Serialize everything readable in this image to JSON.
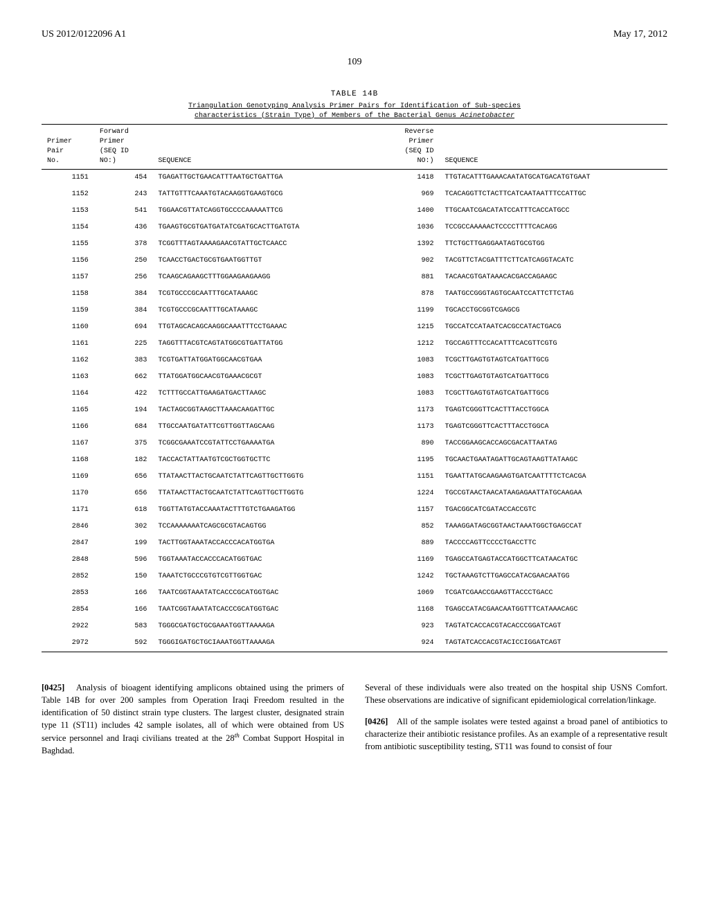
{
  "header": {
    "pub_number": "US 2012/0122096 A1",
    "pub_date": "May 17, 2012"
  },
  "page_number": "109",
  "table": {
    "label": "TABLE 14B",
    "caption_line1": "Triangulation Genotyping Analysis Primer Pairs for Identification of Sub-species",
    "caption_line2_a": "characteristics (Strain Type) of Members of the Bacterial Genus ",
    "caption_line2_b": "Acinetobacter",
    "headers": {
      "pair_no": "Primer\nPair\nNo.",
      "fwd_seqid": "Forward\nPrimer\n(SEQ ID\nNO:)",
      "fwd_seq": "SEQUENCE",
      "rev_seqid": "Reverse\nPrimer\n(SEQ ID\nNO:)",
      "rev_seq": "SEQUENCE"
    },
    "rows": [
      {
        "pair_no": "1151",
        "fwd_id": "454",
        "fwd_seq": "TGAGATTGCTGAACATTTAATGCTGATTGA",
        "rev_id": "1418",
        "rev_seq": "TTGTACATTTGAAACAATATGCATGACATGTGAAT"
      },
      {
        "pair_no": "1152",
        "fwd_id": "243",
        "fwd_seq": "TATTGTTTCAAATGTACAAGGTGAAGTGCG",
        "rev_id": "969",
        "rev_seq": "TCACAGGTTCTACTTCATCAATAATTTCCATTGC"
      },
      {
        "pair_no": "1153",
        "fwd_id": "541",
        "fwd_seq": "TGGAACGTTATCAGGTGCCCCAAAAATTCG",
        "rev_id": "1400",
        "rev_seq": "TTGCAATCGACATATCCATTTCACCATGCC"
      },
      {
        "pair_no": "1154",
        "fwd_id": "436",
        "fwd_seq": "TGAAGTGCGTGATGATATCGATGCACTTGATGTA",
        "rev_id": "1036",
        "rev_seq": "TCCGCCAAAAACTCCCCTTTTCACAGG"
      },
      {
        "pair_no": "1155",
        "fwd_id": "378",
        "fwd_seq": "TCGGTTTAGTAAAAGAACGTATTGCTCAACC",
        "rev_id": "1392",
        "rev_seq": "TTCTGCTTGAGGAATAGTGCGTGG"
      },
      {
        "pair_no": "1156",
        "fwd_id": "250",
        "fwd_seq": "TCAACCTGACTGCGTGAATGGTTGT",
        "rev_id": "902",
        "rev_seq": "TACGTTCTACGATTTCTTCATCAGGTACATC"
      },
      {
        "pair_no": "1157",
        "fwd_id": "256",
        "fwd_seq": "TCAAGCAGAAGCTTTGGAAGAAGAAGG",
        "rev_id": "881",
        "rev_seq": "TACAACGTGATAAACACGACCAGAAGC"
      },
      {
        "pair_no": "1158",
        "fwd_id": "384",
        "fwd_seq": "TCGTGCCCGCAATTTGCATAAAGC",
        "rev_id": "878",
        "rev_seq": "TAATGCCGGGTAGTGCAATCCATTCTTCTAG"
      },
      {
        "pair_no": "1159",
        "fwd_id": "384",
        "fwd_seq": "TCGTGCCCGCAATTTGCATAAAGC",
        "rev_id": "1199",
        "rev_seq": "TGCACCTGCGGTCGAGCG"
      },
      {
        "pair_no": "1160",
        "fwd_id": "694",
        "fwd_seq": "TTGTAGCACAGCAAGGCAAATTTCCTGAAAC",
        "rev_id": "1215",
        "rev_seq": "TGCCATCCATAATCACGCCATACTGACG"
      },
      {
        "pair_no": "1161",
        "fwd_id": "225",
        "fwd_seq": "TAGGTTTACGTCAGTATGGCGTGATTATGG",
        "rev_id": "1212",
        "rev_seq": "TGCCAGTTTCCACATTTCACGTTCGTG"
      },
      {
        "pair_no": "1162",
        "fwd_id": "383",
        "fwd_seq": "TCGTGATTATGGATGGCAACGTGAA",
        "rev_id": "1083",
        "rev_seq": "TCGCTTGAGTGTAGTCATGATTGCG"
      },
      {
        "pair_no": "1163",
        "fwd_id": "662",
        "fwd_seq": "TTATGGATGGCAACGTGAAACGCGT",
        "rev_id": "1083",
        "rev_seq": "TCGCTTGAGTGTAGTCATGATTGCG"
      },
      {
        "pair_no": "1164",
        "fwd_id": "422",
        "fwd_seq": "TCTTTGCCATTGAAGATGACTTAAGC",
        "rev_id": "1083",
        "rev_seq": "TCGCTTGAGTGTAGTCATGATTGCG"
      },
      {
        "pair_no": "1165",
        "fwd_id": "194",
        "fwd_seq": "TACTAGCGGTAAGCTTAAACAAGATTGC",
        "rev_id": "1173",
        "rev_seq": "TGAGTCGGGTTCACTTTACCTGGCA"
      },
      {
        "pair_no": "1166",
        "fwd_id": "684",
        "fwd_seq": "TTGCCAATGATATTCGTTGGTTAGCAAG",
        "rev_id": "1173",
        "rev_seq": "TGAGTCGGGTTCACTTTACCTGGCA"
      },
      {
        "pair_no": "1167",
        "fwd_id": "375",
        "fwd_seq": "TCGGCGAAATCCGTATTCCTGAAAATGA",
        "rev_id": "890",
        "rev_seq": "TACCGGAAGCACCAGCGACATTAATAG"
      },
      {
        "pair_no": "1168",
        "fwd_id": "182",
        "fwd_seq": "TACCACTATTAATGTCGCTGGTGCTTC",
        "rev_id": "1195",
        "rev_seq": "TGCAACTGAATAGATTGCAGTAAGTTATAAGC"
      },
      {
        "pair_no": "1169",
        "fwd_id": "656",
        "fwd_seq": "TTATAACTTACTGCAATCTATTCAGTTGCTTGGTG",
        "rev_id": "1151",
        "rev_seq": "TGAATTATGCAAGAAGTGATCAATTTTCTCACGA"
      },
      {
        "pair_no": "1170",
        "fwd_id": "656",
        "fwd_seq": "TTATAACTTACTGCAATCTATTCAGTTGCTTGGTG",
        "rev_id": "1224",
        "rev_seq": "TGCCGTAACTAACATAAGAGAATTATGCAAGAA"
      },
      {
        "pair_no": "1171",
        "fwd_id": "618",
        "fwd_seq": "TGGTTATGTACCAAATACTTTGTCTGAAGATGG",
        "rev_id": "1157",
        "rev_seq": "TGACGGCATCGATACCACCGTC"
      },
      {
        "pair_no": "2846",
        "fwd_id": "302",
        "fwd_seq": "TCCAAAAAAATCAGCGCGTACAGTGG",
        "rev_id": "852",
        "rev_seq": "TAAAGGATAGCGGTAACTAAATGGCTGAGCCAT"
      },
      {
        "pair_no": "2847",
        "fwd_id": "199",
        "fwd_seq": "TACTTGGTAAATACCACCCACATGGTGA",
        "rev_id": "889",
        "rev_seq": "TACCCCAGTTCCCCTGACCTTC"
      },
      {
        "pair_no": "2848",
        "fwd_id": "596",
        "fwd_seq": "TGGTAAATACCACCCACATGGTGAC",
        "rev_id": "1169",
        "rev_seq": "TGAGCCATGAGTACCATGGCTTCATAACATGC"
      },
      {
        "pair_no": "2852",
        "fwd_id": "150",
        "fwd_seq": "TAAATCTGCCCGTGTCGTTGGTGAC",
        "rev_id": "1242",
        "rev_seq": "TGCTAAAGTCTTGAGCCATACGAACAATGG"
      },
      {
        "pair_no": "2853",
        "fwd_id": "166",
        "fwd_seq": "TAATCGGTAAATATCACCCGCATGGTGAC",
        "rev_id": "1069",
        "rev_seq": "TCGATCGAACCGAAGTTACCCTGACC"
      },
      {
        "pair_no": "2854",
        "fwd_id": "166",
        "fwd_seq": "TAATCGGTAAATATCACCCGCATGGTGAC",
        "rev_id": "1168",
        "rev_seq": "TGAGCCATACGAACAATGGTTTCATAAACAGC"
      },
      {
        "pair_no": "2922",
        "fwd_id": "583",
        "fwd_seq": "TGGGCGATGCTGCGAAATGGTTAAAAGA",
        "rev_id": "923",
        "rev_seq": "TAGTATCACCACGTACACCCGGATCAGT"
      },
      {
        "pair_no": "2972",
        "fwd_id": "592",
        "fwd_seq": "TGGGIGATGCTGCIAAATGGTTAAAAGA",
        "rev_id": "924",
        "rev_seq": "TAGTATCACCACGTACICCIGGATCAGT"
      }
    ]
  },
  "paragraphs": {
    "left": {
      "num": "[0425]",
      "text_before_sup": "Analysis of bioagent identifying amplicons obtained using the primers of Table 14B for over 200 samples from Operation Iraqi Freedom resulted in the identification of 50 distinct strain type clusters. The largest cluster, designated strain type 11 (ST11) includes 42 sample isolates, all of which were obtained from US service personnel and Iraqi civilians treated at the 28",
      "sup": "th",
      "text_after_sup": " Combat Support Hospital in Baghdad."
    },
    "right_top": "Several of these individuals were also treated on the hospital ship USNS Comfort. These observations are indicative of significant epidemiological correlation/linkage.",
    "right_bottom": {
      "num": "[0426]",
      "text": "All of the sample isolates were tested against a broad panel of antibiotics to characterize their antibiotic resistance profiles. As an example of a representative result from antibiotic susceptibility testing, ST11 was found to consist of four"
    }
  }
}
